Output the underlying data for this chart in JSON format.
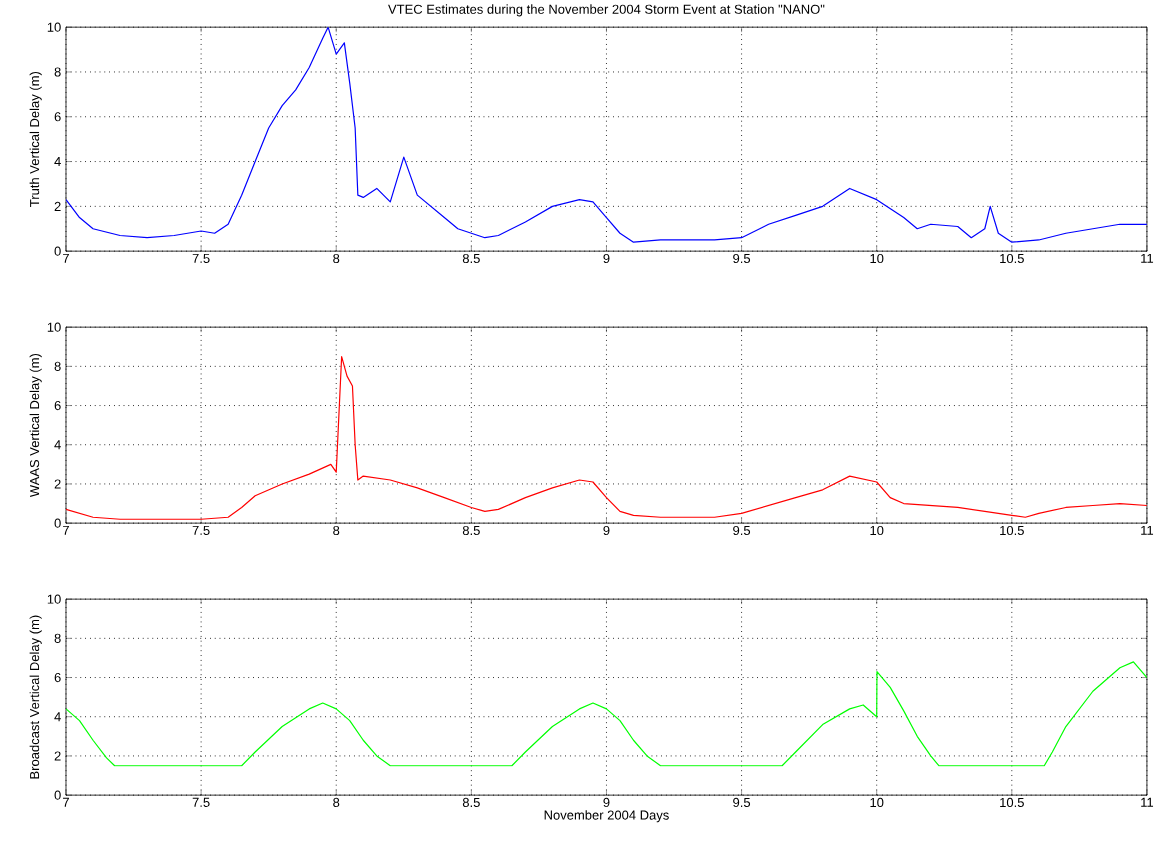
{
  "chart_data": [
    {
      "type": "line",
      "title": "VTEC Estimates during the November 2004 Storm Event at Station \"NANO\"",
      "ylabel": "Truth Vertical Delay (m)",
      "xlim": [
        7,
        11
      ],
      "ylim": [
        0,
        10
      ],
      "xticks": [
        7,
        7.5,
        8,
        8.5,
        9,
        9.5,
        10,
        10.5,
        11
      ],
      "yticks": [
        0,
        2,
        4,
        6,
        8,
        10
      ],
      "grid": true,
      "x": [
        7,
        7.05,
        7.1,
        7.2,
        7.3,
        7.4,
        7.5,
        7.55,
        7.6,
        7.65,
        7.7,
        7.75,
        7.8,
        7.85,
        7.9,
        7.95,
        7.97,
        8.0,
        8.03,
        8.05,
        8.07,
        8.08,
        8.1,
        8.15,
        8.2,
        8.25,
        8.3,
        8.35,
        8.4,
        8.45,
        8.5,
        8.55,
        8.6,
        8.7,
        8.8,
        8.9,
        8.95,
        9.0,
        9.05,
        9.1,
        9.2,
        9.3,
        9.4,
        9.5,
        9.6,
        9.7,
        9.8,
        9.9,
        10.0,
        10.1,
        10.15,
        10.2,
        10.3,
        10.35,
        10.4,
        10.42,
        10.45,
        10.5,
        10.6,
        10.7,
        10.8,
        10.9,
        11.0
      ],
      "series": [
        {
          "color": "#0000ff",
          "values": [
            2.3,
            1.5,
            1.0,
            0.7,
            0.6,
            0.7,
            0.9,
            0.8,
            1.2,
            2.5,
            4.0,
            5.5,
            6.5,
            7.2,
            8.2,
            9.5,
            10,
            8.8,
            9.3,
            7.5,
            5.5,
            2.5,
            2.4,
            2.8,
            2.2,
            4.2,
            2.5,
            2.0,
            1.5,
            1.0,
            0.8,
            0.6,
            0.7,
            1.3,
            2.0,
            2.3,
            2.2,
            1.5,
            0.8,
            0.4,
            0.5,
            0.5,
            0.5,
            0.6,
            1.2,
            1.6,
            2.0,
            2.8,
            2.3,
            1.5,
            1.0,
            1.2,
            1.1,
            0.6,
            1.0,
            2.0,
            0.8,
            0.4,
            0.5,
            0.8,
            1.0,
            1.2,
            1.2
          ]
        }
      ]
    },
    {
      "type": "line",
      "ylabel": "WAAS Vertical Delay (m)",
      "xlim": [
        7,
        11
      ],
      "ylim": [
        0,
        10
      ],
      "xticks": [
        7,
        7.5,
        8,
        8.5,
        9,
        9.5,
        10,
        10.5,
        11
      ],
      "yticks": [
        0,
        2,
        4,
        6,
        8,
        10
      ],
      "grid": true,
      "x": [
        7,
        7.1,
        7.2,
        7.3,
        7.4,
        7.5,
        7.6,
        7.65,
        7.7,
        7.8,
        7.9,
        7.98,
        8.0,
        8.02,
        8.04,
        8.06,
        8.07,
        8.08,
        8.1,
        8.2,
        8.3,
        8.4,
        8.5,
        8.55,
        8.6,
        8.7,
        8.8,
        8.9,
        8.95,
        9.0,
        9.05,
        9.1,
        9.2,
        9.4,
        9.5,
        9.6,
        9.7,
        9.8,
        9.9,
        10.0,
        10.05,
        10.1,
        10.2,
        10.3,
        10.4,
        10.5,
        10.55,
        10.6,
        10.7,
        10.8,
        10.9,
        11.0
      ],
      "series": [
        {
          "color": "#ff0000",
          "values": [
            0.7,
            0.3,
            0.2,
            0.2,
            0.2,
            0.2,
            0.3,
            0.8,
            1.4,
            2.0,
            2.5,
            3.0,
            2.6,
            8.5,
            7.5,
            7.0,
            4.0,
            2.2,
            2.4,
            2.2,
            1.8,
            1.3,
            0.8,
            0.6,
            0.7,
            1.3,
            1.8,
            2.2,
            2.1,
            1.3,
            0.6,
            0.4,
            0.3,
            0.3,
            0.5,
            0.9,
            1.3,
            1.7,
            2.4,
            2.1,
            1.3,
            1.0,
            0.9,
            0.8,
            0.6,
            0.4,
            0.3,
            0.5,
            0.8,
            0.9,
            1.0,
            0.9
          ]
        }
      ]
    },
    {
      "type": "line",
      "xlabel": "November 2004 Days",
      "ylabel": "Broadcast Vertical Delay (m)",
      "xlim": [
        7,
        11
      ],
      "ylim": [
        0,
        10
      ],
      "xticks": [
        7,
        7.5,
        8,
        8.5,
        9,
        9.5,
        10,
        10.5,
        11
      ],
      "yticks": [
        0,
        2,
        4,
        6,
        8,
        10
      ],
      "grid": true,
      "x": [
        7,
        7.05,
        7.1,
        7.15,
        7.18,
        7.65,
        7.7,
        7.8,
        7.9,
        7.95,
        8.0,
        8.05,
        8.1,
        8.15,
        8.2,
        8.65,
        8.7,
        8.8,
        8.9,
        8.95,
        9.0,
        9.05,
        9.1,
        9.15,
        9.2,
        9.65,
        9.7,
        9.8,
        9.9,
        9.95,
        10.0,
        10.001,
        10.05,
        10.1,
        10.15,
        10.2,
        10.23,
        10.62,
        10.65,
        10.7,
        10.8,
        10.9,
        10.95,
        11.0
      ],
      "series": [
        {
          "color": "#00ff00",
          "values": [
            4.4,
            3.8,
            2.8,
            1.9,
            1.5,
            1.5,
            2.2,
            3.5,
            4.4,
            4.7,
            4.4,
            3.8,
            2.8,
            2.0,
            1.5,
            1.5,
            2.2,
            3.5,
            4.4,
            4.7,
            4.4,
            3.8,
            2.8,
            2.0,
            1.5,
            1.5,
            2.2,
            3.6,
            4.4,
            4.6,
            4.0,
            6.3,
            5.5,
            4.3,
            3.0,
            2.0,
            1.5,
            1.5,
            2.2,
            3.5,
            5.3,
            6.5,
            6.8,
            6.0
          ]
        }
      ]
    }
  ]
}
